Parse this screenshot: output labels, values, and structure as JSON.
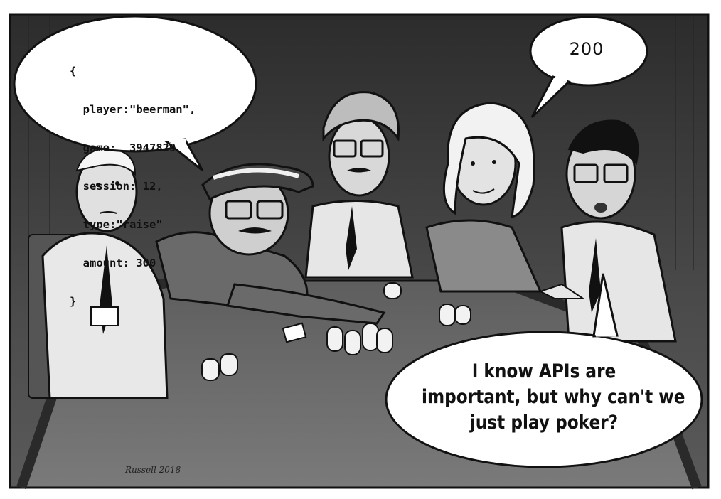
{
  "speech_bubbles": {
    "left_player_json": {
      "lines": [
        "{",
        "  player:\"beerman\",",
        "  game:  3947829",
        "  session: 12,",
        "  type:\"raise\"",
        "  amount: 300",
        "}"
      ]
    },
    "blonde_player_reply": "200",
    "glasses_player_question": {
      "lines": [
        "I know APIs are",
        "important, but why can't we",
        "just play poker?"
      ]
    }
  },
  "signature": "Russell 2018",
  "colors": {
    "background_wall": "#3a3a3a",
    "table": "#6e6e6e",
    "bubble_fill": "#ffffff",
    "outline": "#111111"
  }
}
